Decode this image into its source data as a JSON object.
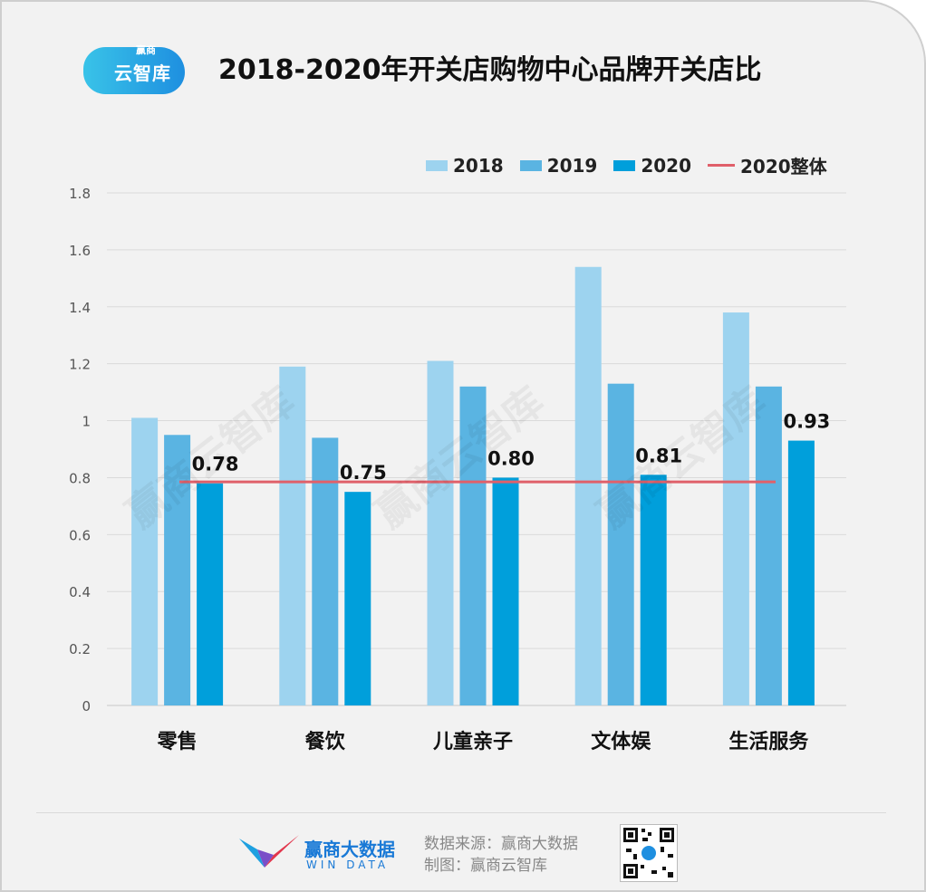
{
  "logo": {
    "text": "云智库",
    "small": "赢商"
  },
  "title": "2018-2020年开关店购物中心品牌开关店比",
  "legend": {
    "items": [
      {
        "label": "2018",
        "color": "#9dd3ef",
        "kind": "bar"
      },
      {
        "label": "2019",
        "color": "#5ab4e2",
        "kind": "bar"
      },
      {
        "label": "2020",
        "color": "#009fdb",
        "kind": "bar"
      },
      {
        "label": "2020整体",
        "color": "#e0606a",
        "kind": "line"
      }
    ]
  },
  "chart_data": {
    "type": "bar",
    "title": "2018-2020年开关店购物中心品牌开关店比",
    "categories": [
      "零售",
      "餐饮",
      "儿童亲子",
      "文体娱",
      "生活服务"
    ],
    "series": [
      {
        "name": "2018",
        "values": [
          1.01,
          1.19,
          1.21,
          1.54,
          1.38
        ],
        "color": "#9dd3ef"
      },
      {
        "name": "2019",
        "values": [
          0.95,
          0.94,
          1.12,
          1.13,
          1.12
        ],
        "color": "#5ab4e2"
      },
      {
        "name": "2020",
        "values": [
          0.78,
          0.75,
          0.8,
          0.81,
          0.93
        ],
        "color": "#009fdb"
      }
    ],
    "data_labels": [
      "0.78",
      "0.75",
      "0.80",
      "0.81",
      "0.93"
    ],
    "reference_line": {
      "name": "2020整体",
      "value": 0.785,
      "color": "#e0606a"
    },
    "yticks": [
      "0",
      "0.2",
      "0.4",
      "0.6",
      "0.8",
      "1",
      "1.2",
      "1.4",
      "1.6",
      "1.8"
    ],
    "ylim": [
      0,
      1.8
    ],
    "grid": true,
    "legend_position": "top-right"
  },
  "footer": {
    "brand": "赢商大数据",
    "brand_en": "WIN DATA",
    "source_line": "数据来源：赢商大数据",
    "made_by_line": "制图：赢商云智库"
  },
  "watermark": [
    "赢商云智库",
    "赢商云智库",
    "赢商云智库",
    "赢商云智库"
  ]
}
